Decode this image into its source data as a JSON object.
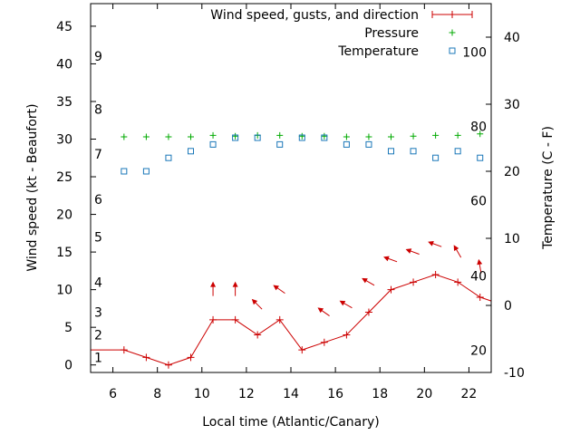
{
  "chart_data": {
    "type": "line",
    "xlabel": "Local time (Atlantic/Canary)",
    "ylabel": "Wind speed (kt - Beaufort)",
    "y2label": "Temperature (C - F)",
    "xlim": [
      5,
      23
    ],
    "ylim": [
      -1,
      48
    ],
    "y2lim": [
      -10,
      45
    ],
    "x_ticks": [
      6,
      8,
      10,
      12,
      14,
      16,
      18,
      20,
      22
    ],
    "y_ticks": [
      0,
      5,
      10,
      15,
      20,
      25,
      30,
      35,
      40,
      45
    ],
    "y2_ticks": [
      -10,
      0,
      10,
      20,
      30,
      40
    ],
    "beaufort_labels": [
      {
        "label": "1",
        "wind": 1
      },
      {
        "label": "2",
        "wind": 4
      },
      {
        "label": "3",
        "wind": 7
      },
      {
        "label": "4",
        "wind": 11
      },
      {
        "label": "5",
        "wind": 17
      },
      {
        "label": "6",
        "wind": 22
      },
      {
        "label": "7",
        "wind": 28
      },
      {
        "label": "8",
        "wind": 34
      },
      {
        "label": "9",
        "wind": 41
      }
    ],
    "fahrenheit_labels": [
      {
        "label": "20",
        "temp": -6.7
      },
      {
        "label": "40",
        "temp": 4.4
      },
      {
        "label": "60",
        "temp": 15.6
      },
      {
        "label": "80",
        "temp": 26.7
      },
      {
        "label": "100",
        "temp": 37.8
      }
    ],
    "legend": [
      {
        "label": "Wind speed, gusts, and direction",
        "color": "#cc0000",
        "marker": "line-plus"
      },
      {
        "label": "Pressure",
        "color": "#00aa00",
        "marker": "plus"
      },
      {
        "label": "Temperature",
        "color": "#1a77b8",
        "marker": "square"
      }
    ],
    "series": [
      {
        "name": "Wind speed",
        "color": "#cc0000",
        "x": [
          5,
          6.5,
          7.5,
          8.5,
          9.5,
          10.5,
          11.5,
          12.5,
          13.5,
          14.5,
          15.5,
          16.5,
          17.5,
          18.5,
          19.5,
          20.5,
          21.5,
          22.5,
          23
        ],
        "y": [
          2,
          2,
          1,
          0,
          1,
          6,
          6,
          4,
          6,
          2,
          3,
          4,
          7,
          10,
          11,
          12,
          11,
          9,
          8.5
        ]
      },
      {
        "name": "Pressure",
        "color": "#00aa00",
        "x": [
          6.5,
          7.5,
          8.5,
          9.5,
          10.5,
          11.5,
          12.5,
          13.5,
          14.5,
          15.5,
          16.5,
          17.5,
          18.5,
          19.5,
          20.5,
          21.5,
          22.5
        ],
        "y": [
          30.3,
          30.3,
          30.3,
          30.3,
          30.5,
          30.4,
          30.5,
          30.5,
          30.4,
          30.4,
          30.3,
          30.3,
          30.3,
          30.4,
          30.5,
          30.5,
          30.7
        ]
      },
      {
        "name": "Temperature",
        "color": "#1a77b8",
        "x": [
          6.5,
          7.5,
          8.5,
          9.5,
          10.5,
          11.5,
          12.5,
          13.5,
          14.5,
          15.5,
          16.5,
          17.5,
          18.5,
          19.5,
          20.5,
          21.5,
          22.5
        ],
        "y": [
          20,
          20,
          22,
          23,
          24,
          25,
          25,
          24,
          25,
          25,
          24,
          24,
          23,
          23,
          22,
          23,
          22
        ]
      }
    ],
    "wind_arrows": [
      {
        "x": 10.5,
        "y": 10,
        "dir": 0
      },
      {
        "x": 11.5,
        "y": 10,
        "dir": 0
      },
      {
        "x": 12.5,
        "y": 8,
        "dir": 315
      },
      {
        "x": 13.5,
        "y": 10,
        "dir": 305
      },
      {
        "x": 15.5,
        "y": 7,
        "dir": 305
      },
      {
        "x": 16.5,
        "y": 8,
        "dir": 300
      },
      {
        "x": 17.5,
        "y": 11,
        "dir": 300
      },
      {
        "x": 18.5,
        "y": 14,
        "dir": 290
      },
      {
        "x": 19.5,
        "y": 15,
        "dir": 290
      },
      {
        "x": 20.5,
        "y": 16,
        "dir": 290
      },
      {
        "x": 21.5,
        "y": 15,
        "dir": 330
      },
      {
        "x": 22.5,
        "y": 13,
        "dir": 350
      }
    ]
  }
}
